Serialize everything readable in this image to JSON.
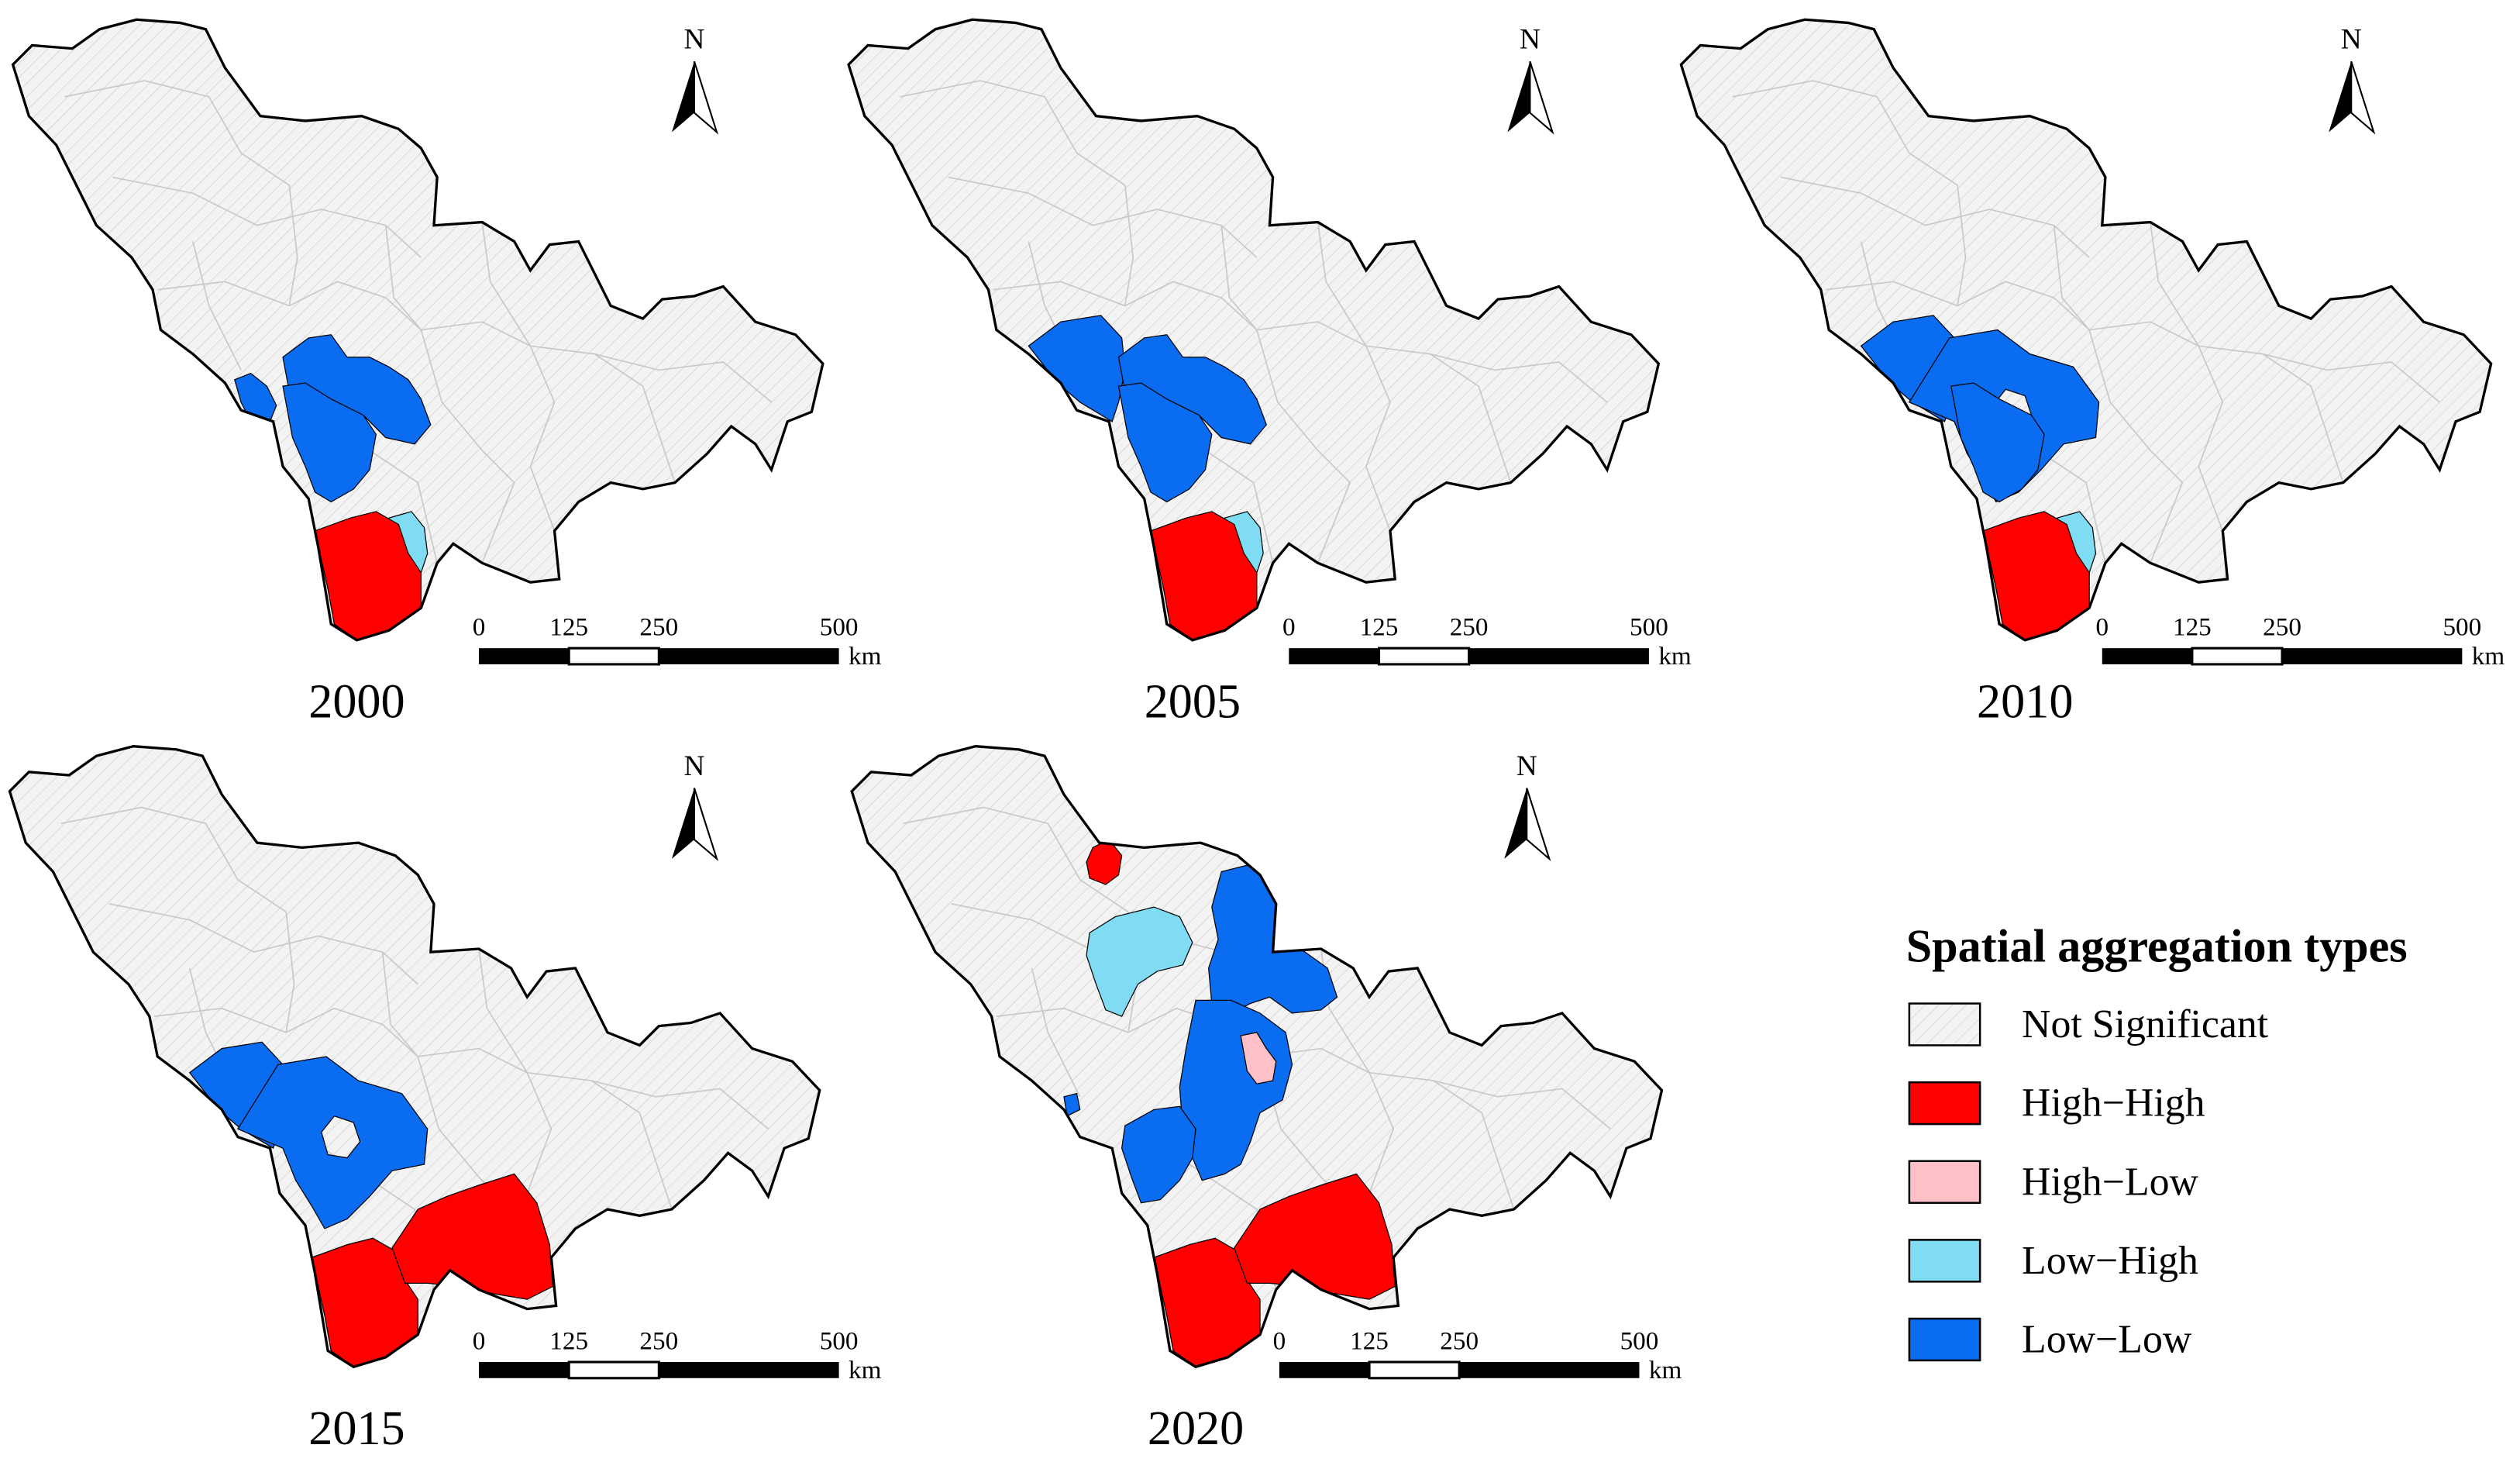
{
  "colors": {
    "not_significant": "#f0f0f0",
    "high_high": "#ff0000",
    "high_low": "#ffc0c8",
    "low_high": "#7fdcf2",
    "low_low": "#0a6cf0",
    "border": "#000000",
    "internal_border": "#c8c8c8"
  },
  "north_label": "N",
  "scale_bar": {
    "ticks": [
      "0",
      "125",
      "250",
      "500"
    ],
    "unit": "km"
  },
  "maps": [
    {
      "year": "2000",
      "clusters": [
        {
          "region": "nw-west-spur",
          "type": "low_low"
        },
        {
          "region": "west-central",
          "type": "low_low"
        },
        {
          "region": "west-lower",
          "type": "low_low"
        },
        {
          "region": "south-sliver",
          "type": "low_high"
        },
        {
          "region": "south-tip",
          "type": "high_high"
        }
      ]
    },
    {
      "year": "2005",
      "clusters": [
        {
          "region": "nw-west",
          "type": "low_low"
        },
        {
          "region": "west-central",
          "type": "low_low"
        },
        {
          "region": "west-lower",
          "type": "low_low"
        },
        {
          "region": "south-sliver",
          "type": "low_high"
        },
        {
          "region": "south-tip",
          "type": "high_high"
        }
      ]
    },
    {
      "year": "2010",
      "clusters": [
        {
          "region": "nw-west",
          "type": "low_low"
        },
        {
          "region": "west-central-ring",
          "type": "low_low"
        },
        {
          "region": "west-lower",
          "type": "low_low"
        },
        {
          "region": "south-sliver",
          "type": "low_high"
        },
        {
          "region": "south-tip",
          "type": "high_high"
        }
      ]
    },
    {
      "year": "2015",
      "clusters": [
        {
          "region": "nw-west",
          "type": "low_low"
        },
        {
          "region": "west-central-ring",
          "type": "low_low"
        },
        {
          "region": "south-tip",
          "type": "high_high"
        },
        {
          "region": "south-east-block",
          "type": "high_high"
        }
      ]
    },
    {
      "year": "2020",
      "clusters": [
        {
          "region": "north-small",
          "type": "high_high"
        },
        {
          "region": "north-central",
          "type": "low_high"
        },
        {
          "region": "north-east-column",
          "type": "low_low"
        },
        {
          "region": "central-column",
          "type": "low_low"
        },
        {
          "region": "central-small",
          "type": "high_low"
        },
        {
          "region": "west-small",
          "type": "low_low"
        },
        {
          "region": "south-tip",
          "type": "high_high"
        },
        {
          "region": "south-east-block",
          "type": "high_high"
        }
      ]
    }
  ],
  "legend": {
    "title": "Spatial aggregation types",
    "items": [
      {
        "key": "not_significant",
        "label": "Not Significant"
      },
      {
        "key": "high_high",
        "label": "High−High"
      },
      {
        "key": "high_low",
        "label": "High−Low"
      },
      {
        "key": "low_high",
        "label": "Low−High"
      },
      {
        "key": "low_low",
        "label": "Low−Low"
      }
    ]
  }
}
